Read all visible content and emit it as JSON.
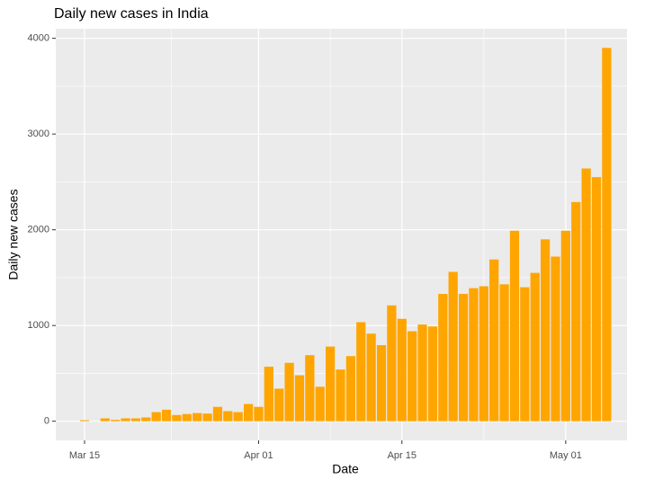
{
  "chart_data": {
    "type": "bar",
    "title": "Daily new cases in India",
    "x_label": "Date",
    "y_label": "Daily new cases",
    "categories": [
      "Mar 15",
      "Mar 16",
      "Mar 17",
      "Mar 18",
      "Mar 19",
      "Mar 20",
      "Mar 21",
      "Mar 22",
      "Mar 23",
      "Mar 24",
      "Mar 25",
      "Mar 26",
      "Mar 27",
      "Mar 28",
      "Mar 29",
      "Mar 30",
      "Mar 31",
      "Apr 01",
      "Apr 02",
      "Apr 03",
      "Apr 04",
      "Apr 05",
      "Apr 06",
      "Apr 07",
      "Apr 08",
      "Apr 09",
      "Apr 10",
      "Apr 11",
      "Apr 12",
      "Apr 13",
      "Apr 14",
      "Apr 15",
      "Apr 16",
      "Apr 17",
      "Apr 18",
      "Apr 19",
      "Apr 20",
      "Apr 21",
      "Apr 22",
      "Apr 23",
      "Apr 24",
      "Apr 25",
      "Apr 26",
      "Apr 27",
      "Apr 28",
      "Apr 29",
      "Apr 30",
      "May 01",
      "May 02",
      "May 03",
      "May 04",
      "May 05"
    ],
    "values": [
      10,
      0,
      30,
      14,
      30,
      30,
      40,
      95,
      120,
      65,
      75,
      85,
      80,
      150,
      105,
      95,
      180,
      150,
      570,
      340,
      610,
      480,
      690,
      360,
      780,
      540,
      680,
      1035,
      915,
      795,
      1210,
      1070,
      940,
      1010,
      990,
      1330,
      1560,
      1330,
      1390,
      1410,
      1690,
      1430,
      1990,
      1400,
      1550,
      1900,
      1720,
      1990,
      2290,
      2640,
      2550,
      3900
    ],
    "color": "#ffa500",
    "xticks": [
      "Mar 15",
      "Apr 01",
      "Apr 15",
      "May 01"
    ],
    "ylim": [
      -200,
      4100
    ],
    "yticks": [
      0,
      1000,
      2000,
      3000,
      4000
    ],
    "grid": true
  }
}
